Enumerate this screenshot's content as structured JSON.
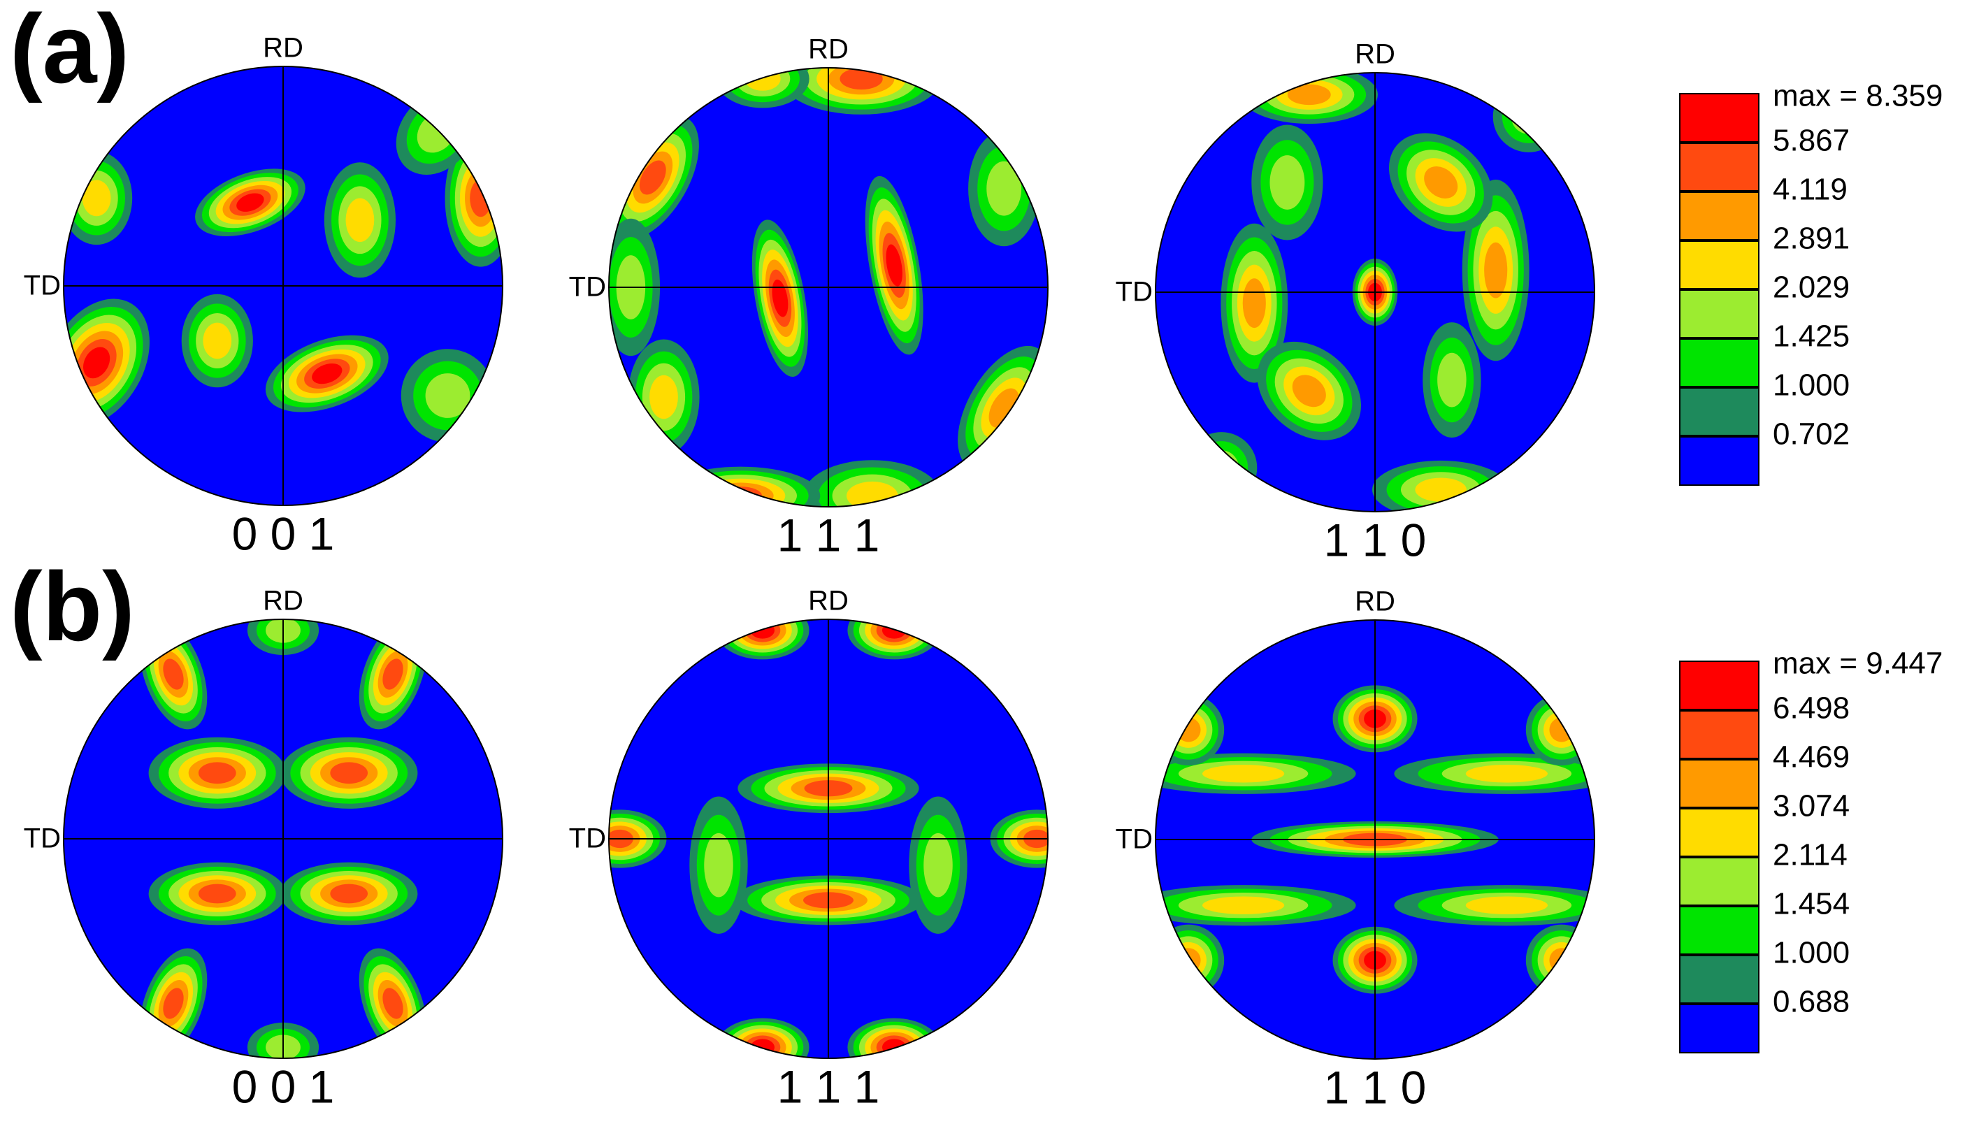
{
  "panels": [
    {
      "label": "(a)",
      "figures": [
        {
          "title": "0 0 1",
          "rd": "RD",
          "td": "TD"
        },
        {
          "title": "1 1 1",
          "rd": "RD",
          "td": "TD"
        },
        {
          "title": "1 1 0",
          "rd": "RD",
          "td": "TD"
        }
      ],
      "legend": {
        "max": "max = 8.359",
        "levels": [
          "5.867",
          "4.119",
          "2.891",
          "2.029",
          "1.425",
          "1.000",
          "0.702"
        ],
        "colors": [
          "#ff0000",
          "#ff4a10",
          "#ff9a00",
          "#ffdc00",
          "#9cec30",
          "#00e400",
          "#1e8a5c",
          "#0000ff"
        ]
      }
    },
    {
      "label": "(b)",
      "figures": [
        {
          "title": "0 0 1",
          "rd": "RD",
          "td": "TD"
        },
        {
          "title": "1 1 1",
          "rd": "RD",
          "td": "TD"
        },
        {
          "title": "1 1 0",
          "rd": "RD",
          "td": "TD"
        }
      ],
      "legend": {
        "max": "max = 9.447",
        "levels": [
          "6.498",
          "4.469",
          "3.074",
          "2.114",
          "1.454",
          "1.000",
          "0.688"
        ],
        "colors": [
          "#ff0000",
          "#ff4a10",
          "#ff9a00",
          "#ffdc00",
          "#9cec30",
          "#00e400",
          "#1e8a5c",
          "#0000ff"
        ]
      }
    }
  ]
}
